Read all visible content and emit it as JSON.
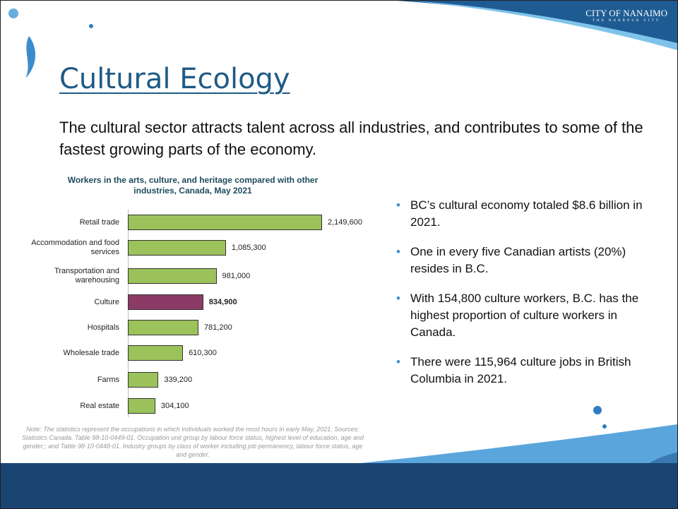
{
  "slide": {
    "logo": "CITY OF NANAIMO",
    "logo_tagline": "THE HARBOUR CITY",
    "title": "Cultural Ecology",
    "intro": "The cultural sector attracts talent across all industries, and contributes to some of the fastest growing parts of the economy.",
    "bullets": [
      "BC’s cultural economy totaled $8.6 billion in 2021.",
      "One in every five Canadian artists (20%) resides in B.C.",
      "With 154,800 culture workers, B.C. has the highest proportion of culture workers in Canada.",
      "There were 115,964 culture jobs in British Columbia in 2021."
    ],
    "note": "Note: The statistics represent the occupations in which individuals worked the most hours in early May, 2021. Sources: Statistics Canada. Table 98-10-0449-01. Occupation unit group by labour force status, highest level of education, age and gender;; and Table 98-10-0448-01. Industry groups by class of worker including job permanency, labour force status, age and gender."
  },
  "chart_data": {
    "type": "hbar",
    "title": "Workers in the arts, culture, and heritage compared with other industries, Canada, May 2021",
    "categories": [
      "Retail trade",
      "Accommodation and food services",
      "Transportation and warehousing",
      "Culture",
      "Hospitals",
      "Wholesale trade",
      "Farms",
      "Real estate"
    ],
    "values": [
      2149600,
      1085300,
      981000,
      834900,
      781200,
      610300,
      339200,
      304100
    ],
    "value_labels": [
      "2,149,600",
      "1,085,300",
      "981,000",
      "834,900",
      "781,200",
      "610,300",
      "339,200",
      "304,100"
    ],
    "colors": [
      "#9bc25b",
      "#9bc25b",
      "#9bc25b",
      "#8c3a66",
      "#9bc25b",
      "#9bc25b",
      "#9bc25b",
      "#9bc25b"
    ],
    "highlight_index": 3
  }
}
